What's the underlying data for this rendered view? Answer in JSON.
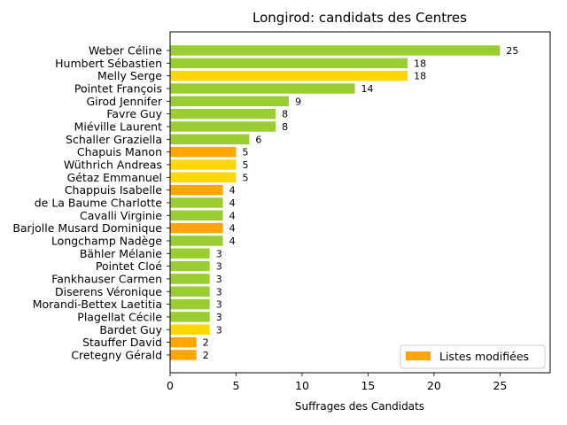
{
  "chart_data": {
    "type": "bar",
    "orientation": "horizontal",
    "title": "Longirod: candidats des Centres",
    "xlabel": "Suffrages des Candidats",
    "ylabel": "",
    "xlim": [
      0,
      28.8
    ],
    "xticks": [
      0,
      5,
      10,
      15,
      20,
      25
    ],
    "grid": false,
    "legend": {
      "position": "lower-right",
      "entries": [
        {
          "label": "Listes modifiées",
          "color": "#FFA500"
        }
      ]
    },
    "bars": [
      {
        "name": "Weber Céline",
        "value": 25,
        "label": "25",
        "color": "#9ACD32"
      },
      {
        "name": "Humbert Sébastien",
        "value": 18,
        "label": "18",
        "color": "#9ACD32"
      },
      {
        "name": "Melly Serge",
        "value": 18,
        "label": "18",
        "color": "#FFD700"
      },
      {
        "name": "Pointet François",
        "value": 14,
        "label": "14",
        "color": "#9ACD32"
      },
      {
        "name": "Girod Jennifer",
        "value": 9,
        "label": "9",
        "color": "#9ACD32"
      },
      {
        "name": "Favre Guy",
        "value": 8,
        "label": "8",
        "color": "#9ACD32"
      },
      {
        "name": "Miéville Laurent",
        "value": 8,
        "label": "8",
        "color": "#9ACD32"
      },
      {
        "name": "Schaller Graziella",
        "value": 6,
        "label": "6",
        "color": "#9ACD32"
      },
      {
        "name": "Chapuis Manon",
        "value": 5,
        "label": "5",
        "color": "#FFA500"
      },
      {
        "name": "Wüthrich Andreas",
        "value": 5,
        "label": "5",
        "color": "#FFD700"
      },
      {
        "name": "Gétaz Emmanuel",
        "value": 5,
        "label": "5",
        "color": "#FFD700"
      },
      {
        "name": "Chappuis Isabelle",
        "value": 4,
        "label": "4",
        "color": "#FFA500"
      },
      {
        "name": "de La Baume Charlotte",
        "value": 4,
        "label": "4",
        "color": "#9ACD32"
      },
      {
        "name": "Cavalli Virginie",
        "value": 4,
        "label": "4",
        "color": "#9ACD32"
      },
      {
        "name": "Barjolle Musard Dominique",
        "value": 4,
        "label": "4",
        "color": "#FFA500"
      },
      {
        "name": "Longchamp Nadège",
        "value": 4,
        "label": "4",
        "color": "#9ACD32"
      },
      {
        "name": "Bähler Mélanie",
        "value": 3,
        "label": "3",
        "color": "#9ACD32"
      },
      {
        "name": "Pointet Cloé",
        "value": 3,
        "label": "3",
        "color": "#9ACD32"
      },
      {
        "name": "Fankhauser Carmen",
        "value": 3,
        "label": "3",
        "color": "#9ACD32"
      },
      {
        "name": "Diserens Véronique",
        "value": 3,
        "label": "3",
        "color": "#9ACD32"
      },
      {
        "name": "Morandi-Bettex Laetitia",
        "value": 3,
        "label": "3",
        "color": "#9ACD32"
      },
      {
        "name": "Plagellat Cécile",
        "value": 3,
        "label": "3",
        "color": "#9ACD32"
      },
      {
        "name": "Bardet Guy",
        "value": 3,
        "label": "3",
        "color": "#FFD700"
      },
      {
        "name": "Stauffer David",
        "value": 2,
        "label": "2",
        "color": "#FFA500"
      },
      {
        "name": "Cretegny Gérald",
        "value": 2,
        "label": "2",
        "color": "#FFA500"
      }
    ]
  }
}
